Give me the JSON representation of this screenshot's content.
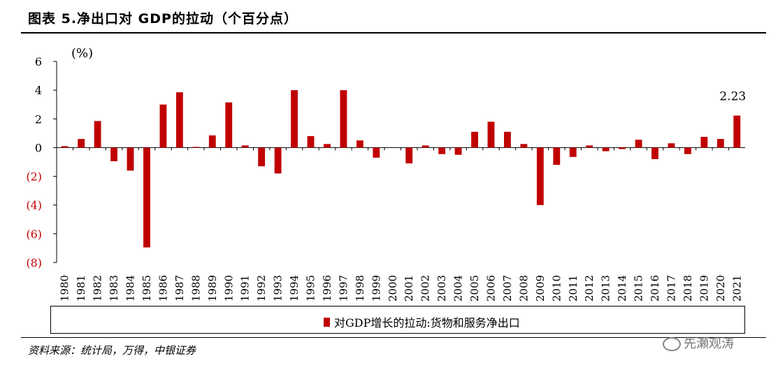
{
  "title": "图表 5.净出口对 GDP的拉动（个百分点）",
  "source": "资料来源：统计局，万得，中银证券",
  "watermark": "先瀬观涛",
  "colors": {
    "bar": "#C00000",
    "negative_tick": "#C00000"
  },
  "chart_data": {
    "type": "bar",
    "title": "图表 5.净出口对 GDP的拉动（个百分点）",
    "ylabel": "(%)",
    "ylim": [
      -8,
      6
    ],
    "yticks": [
      6,
      4,
      2,
      0,
      -2,
      -4,
      -6,
      -8
    ],
    "ytick_labels": [
      "6",
      "4",
      "2",
      "0",
      "(2)",
      "(4)",
      "(6)",
      "(8)"
    ],
    "legend": [
      "对GDP增长的拉动:货物和服务净出口"
    ],
    "legend_position": "bottom",
    "grid": false,
    "annotations": [
      {
        "category": "2021",
        "text": "2.23"
      }
    ],
    "categories": [
      "1980",
      "1981",
      "1982",
      "1983",
      "1984",
      "1985",
      "1986",
      "1987",
      "1988",
      "1989",
      "1990",
      "1991",
      "1992",
      "1993",
      "1994",
      "1995",
      "1996",
      "1997",
      "1998",
      "1999",
      "2000",
      "2001",
      "2002",
      "2003",
      "2004",
      "2005",
      "2006",
      "2007",
      "2008",
      "2009",
      "2010",
      "2011",
      "2012",
      "2013",
      "2014",
      "2015",
      "2016",
      "2017",
      "2018",
      "2019",
      "2020",
      "2021"
    ],
    "series": [
      {
        "name": "对GDP增长的拉动:货物和服务净出口",
        "values": [
          0.1,
          0.6,
          1.85,
          -0.95,
          -1.6,
          -6.95,
          3.0,
          3.85,
          0.05,
          0.85,
          3.15,
          0.15,
          -1.3,
          -1.8,
          4.0,
          0.8,
          0.25,
          4.0,
          0.5,
          -0.7,
          0.0,
          -1.1,
          0.15,
          -0.45,
          -0.5,
          1.1,
          1.8,
          1.1,
          0.25,
          -4.0,
          -1.2,
          -0.65,
          0.15,
          -0.25,
          -0.1,
          0.55,
          -0.8,
          0.3,
          -0.45,
          0.75,
          0.6,
          2.23
        ]
      }
    ]
  }
}
